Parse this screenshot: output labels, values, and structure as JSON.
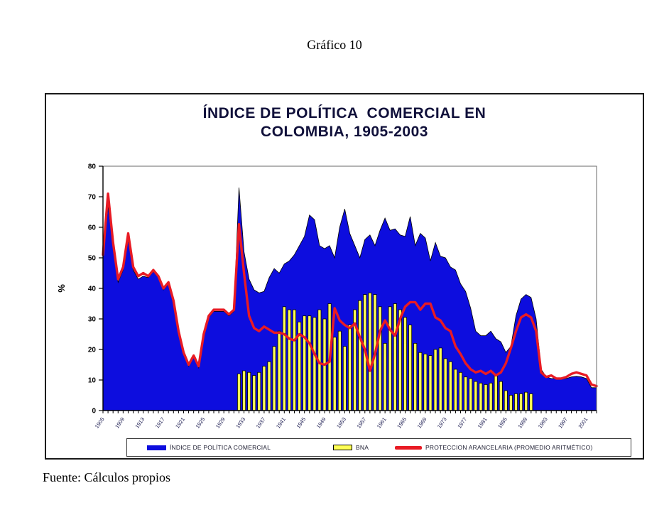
{
  "figure_label": "Gráfico 10",
  "source_note": "Fuente: Cálculos propios",
  "header": {
    "line1": "ÍNDICE DE POLÍTICA  COMERCIAL EN",
    "line2": "COLOMBIA, 1905-2003"
  },
  "colors": {
    "ipc_blue": "#0d0dde",
    "bna_yellow": "#ffff55",
    "protection_red": "#e81b24",
    "title_navy": "#10103a",
    "axis_black": "#000000",
    "tick_label": "#1a1a50"
  },
  "chart_data": {
    "type": "combo",
    "title": "ÍNDICE DE POLÍTICA COMERCIAL EN COLOMBIA, 1905-2003",
    "ylabel": "%",
    "ylim": [
      0,
      80
    ],
    "x_start": 1905,
    "x_end": 2003,
    "yticks": [
      0,
      10,
      20,
      30,
      40,
      50,
      60,
      70,
      80
    ],
    "xtick_labels": [
      "1905",
      "1909",
      "1913",
      "1917",
      "1921",
      "1925",
      "1929",
      "1933",
      "1937",
      "1941",
      "1945",
      "1949",
      "1953",
      "1957",
      "1961",
      "1965",
      "1969",
      "1973",
      "1977",
      "1981",
      "1985",
      "1989",
      "1993",
      "1997",
      "2001"
    ],
    "grid": false,
    "legend_position": "bottom",
    "series": [
      {
        "name": "ÍNDICE DE POLÍTICA COMERCIAL",
        "type": "area",
        "color": "#0d0dde",
        "start_year": 1905,
        "values": [
          50,
          67,
          54,
          42,
          46,
          56,
          46,
          43,
          44,
          43.5,
          45.5,
          43.5,
          39.5,
          41.5,
          35.5,
          25.5,
          18.5,
          14.5,
          17.5,
          14,
          24.5,
          30.5,
          32.5,
          32.5,
          32.5,
          31,
          32.5,
          73,
          52,
          43,
          39.5,
          38.5,
          39,
          43.5,
          46.5,
          45,
          48,
          49,
          51,
          54,
          57,
          64,
          62.5,
          54,
          53,
          54,
          50,
          60,
          66,
          58,
          54,
          50,
          56,
          57.5,
          54,
          59,
          63,
          59,
          59.5,
          57.5,
          57,
          63.5,
          54,
          58,
          56.5,
          49,
          55,
          50.5,
          50,
          47,
          46,
          41.5,
          39,
          33.5,
          26,
          24.5,
          24.5,
          26,
          23.5,
          22.5,
          19,
          21,
          31,
          36.5,
          38,
          37,
          30,
          13.5,
          11,
          10.5,
          10.5,
          10.3,
          10.5,
          11,
          11.2,
          11,
          10.5,
          7.5,
          7.5
        ]
      },
      {
        "name": "BNA",
        "type": "bar",
        "color": "#ffff55",
        "start_year": 1932,
        "values": [
          12,
          13,
          12.5,
          11.5,
          12.5,
          14.5,
          16,
          21,
          26,
          34,
          33,
          33,
          29,
          31,
          31,
          30.5,
          33,
          30,
          35,
          24,
          26,
          21,
          28,
          33,
          36,
          38,
          38.5,
          38,
          34,
          22,
          34,
          35,
          33,
          30.5,
          28,
          22,
          19,
          18.5,
          18,
          20,
          20.5,
          17,
          16,
          13.5,
          12.5,
          11,
          10.5,
          9.5,
          9,
          8.5,
          9,
          11.5,
          9.5,
          6.5,
          5,
          5.5,
          5.5,
          6,
          5.5
        ]
      },
      {
        "name": "PROTECCION ARANCELARIA (PROMEDIO ARITMÉTICO)",
        "type": "line",
        "color": "#e81b24",
        "start_year": 1905,
        "values": [
          51,
          71,
          55,
          43,
          47,
          58,
          47,
          44,
          45,
          44,
          46,
          44,
          40,
          42,
          36,
          26,
          19,
          15,
          18,
          14.5,
          25,
          31,
          33,
          33,
          33,
          31.5,
          33,
          61,
          45,
          31,
          27,
          26,
          27.5,
          26.5,
          25.5,
          25.5,
          25,
          23.5,
          23,
          25,
          24,
          22,
          18.5,
          15.5,
          15,
          16,
          33.5,
          29.5,
          28,
          27,
          28.5,
          24,
          20,
          13,
          18.5,
          26,
          29.5,
          26.5,
          24.5,
          30,
          34,
          35.5,
          35.5,
          33,
          35,
          35,
          30.5,
          29.5,
          27,
          26,
          21,
          18.5,
          15.5,
          13.5,
          12.5,
          13,
          12,
          13,
          11.5,
          12.5,
          15.5,
          20.5,
          26,
          30.5,
          31.5,
          30.5,
          26,
          12.5,
          11,
          11.5,
          10.5,
          10.5,
          11,
          12,
          12.5,
          12,
          11.5,
          8.5,
          8
        ]
      }
    ]
  }
}
